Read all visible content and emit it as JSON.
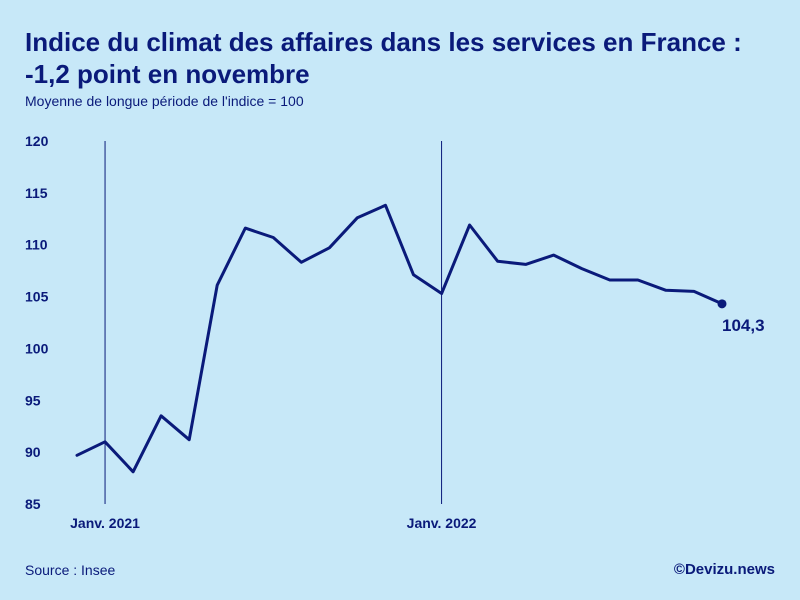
{
  "title": "Indice du climat des affaires dans les services en France : -1,2 point en novembre",
  "subtitle": "Moyenne de longue période de l'indice = 100",
  "source": "Source : Insee",
  "credit": "©Devizu.news",
  "colors": {
    "background": "#c7e8f8",
    "line": "#0a1a7a"
  },
  "chart_data": {
    "type": "line",
    "title": "Indice du climat des affaires dans les services en France : -1,2 point en novembre",
    "subtitle": "Moyenne de longue période de l'indice = 100",
    "ylim": [
      85,
      120
    ],
    "yticks": [
      85,
      90,
      95,
      100,
      105,
      110,
      115,
      120
    ],
    "x_tick_labels": [
      {
        "label": "Janv. 2021",
        "x": "2021-01"
      },
      {
        "label": "Janv. 2022",
        "x": "2022-01"
      }
    ],
    "reference_lines_at": [
      "2021-01",
      "2022-01"
    ],
    "grid": false,
    "x": [
      "2020-12",
      "2021-01",
      "2021-02",
      "2021-03",
      "2021-04",
      "2021-05",
      "2021-06",
      "2021-07",
      "2021-08",
      "2021-09",
      "2021-10",
      "2021-11",
      "2021-12",
      "2022-01",
      "2022-02",
      "2022-03",
      "2022-04",
      "2022-05",
      "2022-06",
      "2022-07",
      "2022-08",
      "2022-09",
      "2022-10",
      "2022-11"
    ],
    "values": [
      89.7,
      91.0,
      88.1,
      93.5,
      91.2,
      106.1,
      111.6,
      110.7,
      108.3,
      109.7,
      112.6,
      113.8,
      107.1,
      105.3,
      111.9,
      108.4,
      108.1,
      109.0,
      107.7,
      106.6,
      106.6,
      105.6,
      105.5,
      104.3
    ],
    "last_value_label": "104,3"
  }
}
